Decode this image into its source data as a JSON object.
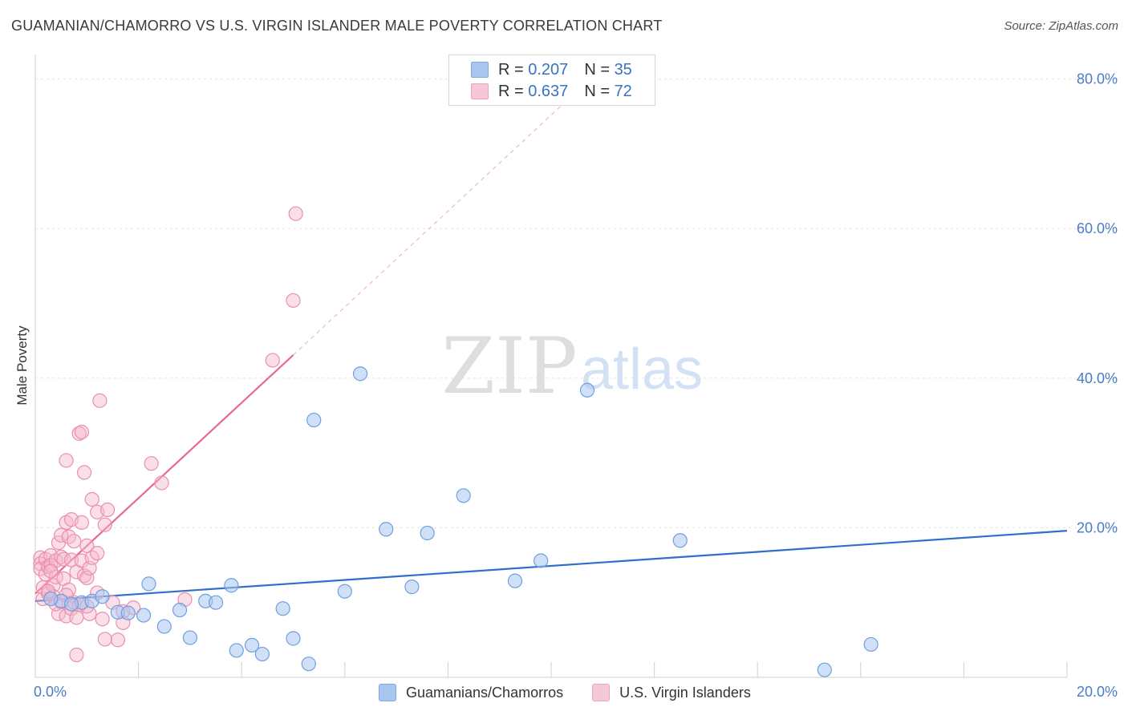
{
  "title": "GUAMANIAN/CHAMORRO VS U.S. VIRGIN ISLANDER MALE POVERTY CORRELATION CHART",
  "source": "Source: ZipAtlas.com",
  "watermark": {
    "zip": "ZIP",
    "atlas": "atlas"
  },
  "legend_top": {
    "rows": [
      {
        "r_label": "R =",
        "r_value": "0.207",
        "n_label": "N =",
        "n_value": "35",
        "color": "#a9c6ee"
      },
      {
        "r_label": "R =",
        "r_value": "0.637",
        "n_label": "N =",
        "n_value": "72",
        "color": "#f6b9cd"
      }
    ]
  },
  "legend_bottom": {
    "items": [
      {
        "label": "Guamanians/Chamorros",
        "color": "#a9c6ee"
      },
      {
        "label": "U.S. Virgin Islanders",
        "color": "#f6b9cd"
      }
    ]
  },
  "chart_data": {
    "type": "scatter",
    "title": "GUAMANIAN/CHAMORRO VS U.S. VIRGIN ISLANDER MALE POVERTY CORRELATION CHART",
    "xlabel": "",
    "ylabel": "Male Poverty",
    "xlim": [
      0,
      20
    ],
    "ylim": [
      0,
      82
    ],
    "x_tick_labels": [
      {
        "value": 0,
        "label": "0.0%"
      },
      {
        "value": 20,
        "label": "20.0%"
      }
    ],
    "y_tick_labels": [
      {
        "value": 20,
        "label": "20.0%"
      },
      {
        "value": 40,
        "label": "40.0%"
      },
      {
        "value": 60,
        "label": "60.0%"
      },
      {
        "value": 80,
        "label": "80.0%"
      }
    ],
    "grid": true,
    "legend_position": "top-center",
    "series": [
      {
        "name": "Guamanians/Chamorros",
        "color": "#6f9fe0",
        "fill": "#a9c6ee",
        "trend": {
          "x": [
            0,
            20
          ],
          "y": [
            10.2,
            19.6
          ],
          "color": "#2f6fc9",
          "dashed_extension": false
        },
        "points": [
          [
            0.5,
            10.2
          ],
          [
            0.9,
            10.0
          ],
          [
            1.1,
            10.2
          ],
          [
            1.3,
            10.8
          ],
          [
            1.6,
            8.7
          ],
          [
            1.8,
            8.6
          ],
          [
            2.1,
            8.3
          ],
          [
            2.2,
            12.5
          ],
          [
            2.5,
            6.8
          ],
          [
            2.8,
            9.0
          ],
          [
            3.0,
            5.3
          ],
          [
            3.3,
            10.2
          ],
          [
            3.5,
            10.0
          ],
          [
            3.8,
            12.3
          ],
          [
            3.9,
            3.6
          ],
          [
            4.2,
            4.3
          ],
          [
            4.4,
            3.1
          ],
          [
            4.8,
            9.2
          ],
          [
            5.0,
            5.2
          ],
          [
            5.3,
            1.8
          ],
          [
            5.4,
            34.4
          ],
          [
            6.0,
            11.5
          ],
          [
            6.3,
            40.6
          ],
          [
            6.8,
            19.8
          ],
          [
            7.3,
            12.1
          ],
          [
            7.6,
            19.3
          ],
          [
            8.3,
            24.3
          ],
          [
            9.3,
            12.9
          ],
          [
            9.8,
            15.6
          ],
          [
            10.7,
            38.4
          ],
          [
            12.5,
            18.3
          ],
          [
            15.3,
            1.0
          ],
          [
            16.2,
            4.4
          ],
          [
            0.7,
            9.8
          ],
          [
            0.3,
            10.5
          ]
        ]
      },
      {
        "name": "U.S. Virgin Islanders",
        "color": "#ea8fae",
        "fill": "#f6b9cd",
        "trend": {
          "x": [
            0,
            5.0
          ],
          "y": [
            11.2,
            43.1
          ],
          "extension_x": [
            5.0,
            10.5
          ],
          "extension_y": [
            43.1,
            78.4
          ],
          "color": "#e8698f",
          "dashed_extension": true
        },
        "points": [
          [
            0.1,
            16.0
          ],
          [
            0.1,
            15.2
          ],
          [
            0.1,
            14.5
          ],
          [
            0.15,
            12.0
          ],
          [
            0.15,
            10.5
          ],
          [
            0.2,
            15.8
          ],
          [
            0.2,
            13.8
          ],
          [
            0.25,
            14.8
          ],
          [
            0.25,
            11.2
          ],
          [
            0.3,
            16.3
          ],
          [
            0.3,
            15.0
          ],
          [
            0.35,
            12.3
          ],
          [
            0.35,
            10.8
          ],
          [
            0.4,
            15.6
          ],
          [
            0.4,
            13.4
          ],
          [
            0.45,
            18.0
          ],
          [
            0.45,
            8.5
          ],
          [
            0.5,
            19.0
          ],
          [
            0.5,
            16.1
          ],
          [
            0.5,
            10.1
          ],
          [
            0.55,
            15.8
          ],
          [
            0.55,
            13.2
          ],
          [
            0.6,
            29.0
          ],
          [
            0.6,
            20.7
          ],
          [
            0.6,
            8.2
          ],
          [
            0.65,
            18.8
          ],
          [
            0.65,
            11.7
          ],
          [
            0.7,
            21.1
          ],
          [
            0.7,
            15.7
          ],
          [
            0.7,
            9.2
          ],
          [
            0.75,
            18.2
          ],
          [
            0.75,
            10.0
          ],
          [
            0.8,
            14.1
          ],
          [
            0.8,
            3.0
          ],
          [
            0.85,
            32.6
          ],
          [
            0.85,
            9.7
          ],
          [
            0.9,
            32.8
          ],
          [
            0.9,
            20.7
          ],
          [
            0.9,
            15.6
          ],
          [
            0.95,
            27.4
          ],
          [
            0.95,
            13.6
          ],
          [
            1.0,
            17.6
          ],
          [
            1.0,
            13.3
          ],
          [
            1.05,
            14.6
          ],
          [
            1.05,
            8.5
          ],
          [
            1.1,
            23.8
          ],
          [
            1.1,
            16.0
          ],
          [
            1.2,
            22.1
          ],
          [
            1.2,
            16.6
          ],
          [
            1.2,
            11.3
          ],
          [
            1.25,
            37.0
          ],
          [
            1.3,
            7.8
          ],
          [
            1.35,
            20.4
          ],
          [
            1.35,
            5.1
          ],
          [
            1.4,
            22.4
          ],
          [
            1.5,
            10.0
          ],
          [
            1.6,
            5.0
          ],
          [
            1.7,
            8.8
          ],
          [
            1.7,
            7.3
          ],
          [
            1.9,
            9.3
          ],
          [
            2.25,
            28.6
          ],
          [
            2.45,
            26.0
          ],
          [
            2.9,
            10.4
          ],
          [
            4.6,
            42.4
          ],
          [
            5.0,
            50.4
          ],
          [
            5.05,
            62.0
          ],
          [
            0.25,
            11.5
          ],
          [
            0.4,
            9.8
          ],
          [
            0.8,
            8.0
          ],
          [
            1.0,
            9.5
          ],
          [
            0.3,
            14.2
          ],
          [
            0.6,
            11.0
          ]
        ]
      }
    ]
  }
}
